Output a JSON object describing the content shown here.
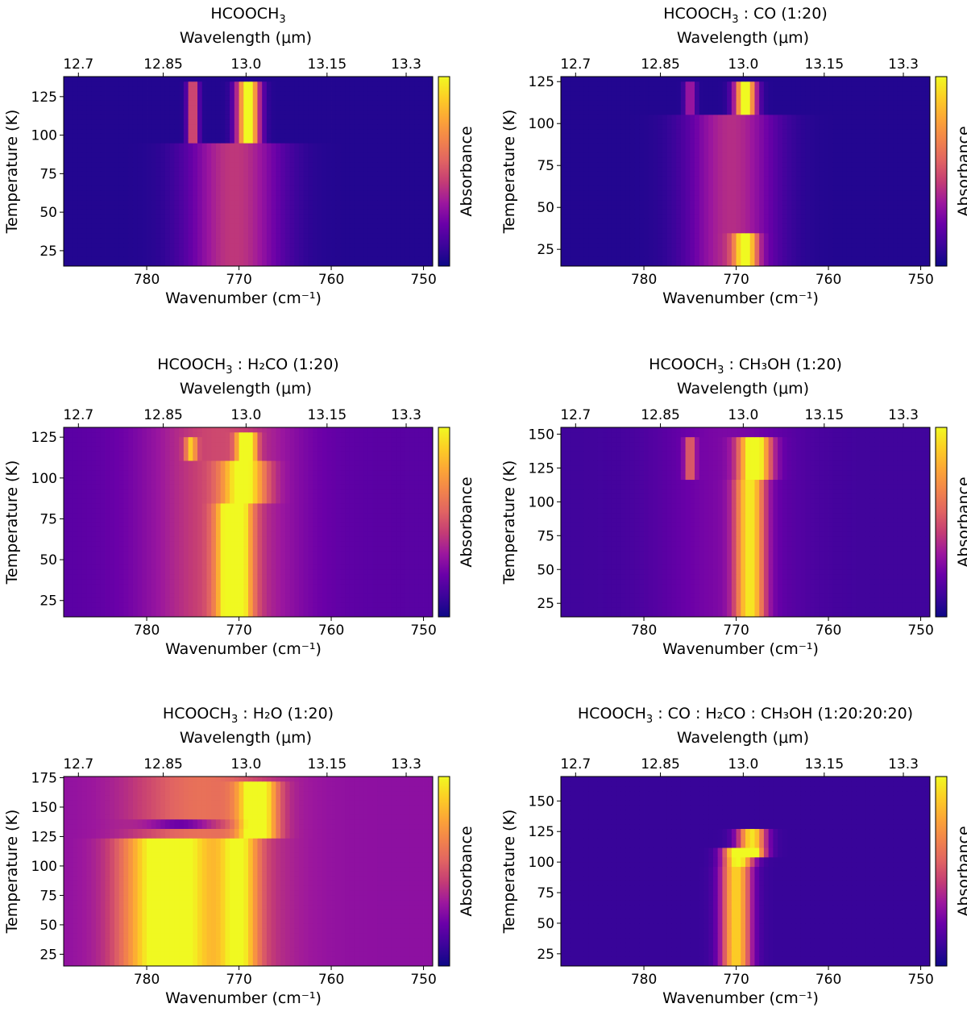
{
  "figure": {
    "colormap": [
      "#0d0887",
      "#3d049b",
      "#6a00a8",
      "#9c179e",
      "#c43c75",
      "#e16462",
      "#f2844b",
      "#fca636",
      "#fcce25",
      "#f0f921"
    ]
  },
  "chart_data": [
    {
      "type": "heatmap",
      "title": {
        "main": "HCOOCH",
        "sub": "3",
        "rest": ""
      },
      "xlabel": "Wavenumber (cm⁻¹)",
      "x2label": "Wavelength (μm)",
      "ylabel": "Temperature (K)",
      "colorbar_label": "Absorbance",
      "xlim": [
        789,
        749
      ],
      "ylim": [
        15,
        138
      ],
      "x_ticks": [
        780,
        770,
        760,
        750
      ],
      "x2_ticks": [
        "12.7",
        "12.85",
        "13.0",
        "13.15",
        "13.3"
      ],
      "y_ticks": [
        25,
        50,
        75,
        100,
        125
      ],
      "bands": [
        {
          "x_center": 770.5,
          "x_width": 10,
          "y_range": [
            15,
            94
          ],
          "intensity": 0.38
        },
        {
          "x_center": 769.0,
          "x_width": 2.4,
          "y_range": [
            94,
            134
          ],
          "intensity": 1.0
        },
        {
          "x_center": 775.0,
          "x_width": 1.2,
          "y_range": [
            94,
            134
          ],
          "intensity": 0.5
        }
      ],
      "background": 0.05
    },
    {
      "type": "heatmap",
      "title": {
        "main": "HCOOCH",
        "sub": "3",
        "rest": " : CO (1:20)"
      },
      "xlabel": "Wavenumber (cm⁻¹)",
      "x2label": "Wavelength (μm)",
      "ylabel": "Temperature (K)",
      "colorbar_label": "Absorbance",
      "xlim": [
        789,
        749
      ],
      "ylim": [
        15,
        128
      ],
      "x_ticks": [
        780,
        770,
        760,
        750
      ],
      "x2_ticks": [
        "12.7",
        "12.85",
        "13.0",
        "13.15",
        "13.3"
      ],
      "y_ticks": [
        25,
        50,
        75,
        100,
        125
      ],
      "bands": [
        {
          "x_center": 770.5,
          "x_width": 9.5,
          "y_range": [
            15,
            105
          ],
          "intensity": 0.35
        },
        {
          "x_center": 769.0,
          "x_width": 2.3,
          "y_range": [
            105,
            125
          ],
          "intensity": 1.0
        },
        {
          "x_center": 769.0,
          "x_width": 2.5,
          "y_range": [
            15,
            36
          ],
          "intensity": 0.72
        },
        {
          "x_center": 775.0,
          "x_width": 1.2,
          "y_range": [
            105,
            125
          ],
          "intensity": 0.32
        }
      ],
      "background": 0.05
    },
    {
      "type": "heatmap",
      "title": {
        "main": "HCOOCH",
        "sub": "3",
        "rest": " : H₂CO (1:20)"
      },
      "xlabel": "Wavenumber (cm⁻¹)",
      "x2label": "Wavelength (μm)",
      "ylabel": "Temperature (K)",
      "colorbar_label": "Absorbance",
      "xlim": [
        789,
        749
      ],
      "ylim": [
        15,
        131
      ],
      "x_ticks": [
        780,
        770,
        760,
        750
      ],
      "x2_ticks": [
        "12.7",
        "12.85",
        "13.0",
        "13.15",
        "13.3"
      ],
      "y_ticks": [
        25,
        50,
        75,
        100,
        125
      ],
      "bands": [
        {
          "x_center": 772.0,
          "x_width": 16,
          "y_range": [
            15,
            131
          ],
          "intensity": 0.3
        },
        {
          "x_center": 770.5,
          "x_width": 3.6,
          "y_range": [
            15,
            84
          ],
          "intensity": 0.82
        },
        {
          "x_center": 769.5,
          "x_width": 4.6,
          "y_range": [
            84,
            112
          ],
          "intensity": 0.62
        },
        {
          "x_center": 769.2,
          "x_width": 1.9,
          "y_range": [
            112,
            128
          ],
          "intensity": 1.0
        },
        {
          "x_center": 775.2,
          "x_width": 1.2,
          "y_range": [
            112,
            126
          ],
          "intensity": 0.45
        }
      ],
      "background": 0.18
    },
    {
      "type": "heatmap",
      "title": {
        "main": "HCOOCH",
        "sub": "3",
        "rest": " : CH₃OH (1:20)"
      },
      "xlabel": "Wavenumber (cm⁻¹)",
      "x2label": "Wavelength (μm)",
      "ylabel": "Temperature (K)",
      "colorbar_label": "Absorbance",
      "xlim": [
        789,
        749
      ],
      "ylim": [
        15,
        155
      ],
      "x_ticks": [
        780,
        770,
        760,
        750
      ],
      "x2_ticks": [
        "12.7",
        "12.85",
        "13.0",
        "13.15",
        "13.3"
      ],
      "y_ticks": [
        25,
        50,
        75,
        100,
        125,
        150
      ],
      "bands": [
        {
          "x_center": 771.0,
          "x_width": 15,
          "y_range": [
            15,
            155
          ],
          "intensity": 0.14
        },
        {
          "x_center": 768.5,
          "x_width": 3.2,
          "y_range": [
            15,
            115
          ],
          "intensity": 0.72
        },
        {
          "x_center": 768.0,
          "x_width": 3.4,
          "y_range": [
            115,
            148
          ],
          "intensity": 0.9
        },
        {
          "x_center": 775.0,
          "x_width": 1.2,
          "y_range": [
            116,
            148
          ],
          "intensity": 0.35
        }
      ],
      "background": 0.12
    },
    {
      "type": "heatmap",
      "title": {
        "main": "HCOOCH",
        "sub": "3",
        "rest": " : H₂O (1:20)"
      },
      "xlabel": "Wavenumber (cm⁻¹)",
      "x2label": "Wavelength (μm)",
      "ylabel": "Temperature (K)",
      "colorbar_label": "Absorbance",
      "xlim": [
        789,
        749
      ],
      "ylim": [
        15,
        176
      ],
      "x_ticks": [
        780,
        770,
        760,
        750
      ],
      "x2_ticks": [
        "12.7",
        "12.85",
        "13.0",
        "13.15",
        "13.3"
      ],
      "y_ticks": [
        25,
        50,
        75,
        100,
        125,
        150,
        175
      ],
      "bands": [
        {
          "x_center": 774.0,
          "x_width": 16,
          "y_range": [
            15,
            176
          ],
          "intensity": 0.3
        },
        {
          "x_center": 778.0,
          "x_width": 9,
          "y_range": [
            15,
            125
          ],
          "intensity": 0.62
        },
        {
          "x_center": 770.0,
          "x_width": 4,
          "y_range": [
            15,
            125
          ],
          "intensity": 0.5
        },
        {
          "x_center": 768.0,
          "x_width": 4,
          "y_range": [
            125,
            170
          ],
          "intensity": 0.72
        },
        {
          "x_center": 776.0,
          "x_width": 8,
          "y_range": [
            132,
            141
          ],
          "intensity": -0.35
        }
      ],
      "background": 0.3
    },
    {
      "type": "heatmap",
      "title": {
        "main": "HCOOCH",
        "sub": "3",
        "rest": " : CO : H₂CO : CH₃OH (1:20:20:20)"
      },
      "xlabel": "Wavenumber (cm⁻¹)",
      "x2label": "Wavelength (μm)",
      "ylabel": "Temperature (K)",
      "colorbar_label": "Absorbance",
      "xlim": [
        789,
        749
      ],
      "ylim": [
        15,
        170
      ],
      "x_ticks": [
        780,
        770,
        760,
        750
      ],
      "x2_ticks": [
        "12.7",
        "12.85",
        "13.0",
        "13.15",
        "13.3"
      ],
      "y_ticks": [
        25,
        50,
        75,
        100,
        125,
        150
      ],
      "bands": [
        {
          "x_center": 770.0,
          "x_width": 3.2,
          "y_range": [
            15,
            95
          ],
          "intensity": 0.8
        },
        {
          "x_center": 769.8,
          "x_width": 3.2,
          "y_range": [
            95,
            112
          ],
          "intensity": 0.95
        },
        {
          "x_center": 768.3,
          "x_width": 3.0,
          "y_range": [
            105,
            128
          ],
          "intensity": 0.85
        }
      ],
      "background": 0.1
    }
  ]
}
